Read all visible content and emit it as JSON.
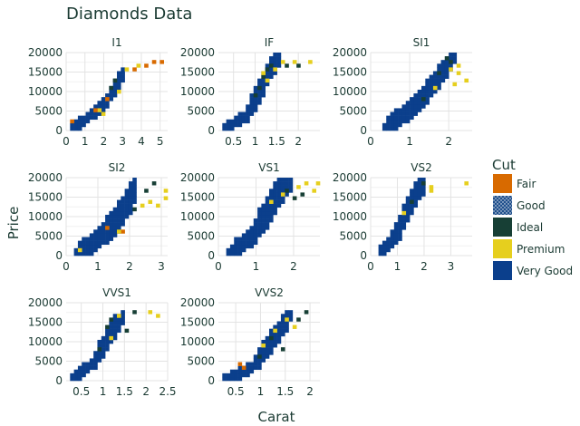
{
  "chart_data": {
    "type": "heatmap",
    "title": "Diamonds Data",
    "xlabel": "Carat",
    "ylabel": "Price",
    "ylim": [
      0,
      20000
    ],
    "y_ticks": [
      0,
      5000,
      10000,
      15000,
      20000
    ],
    "grid": true,
    "legend": {
      "title": "Cut",
      "placement": "right",
      "entries": [
        {
          "name": "Fair",
          "color": "#d86a00",
          "pattern": false
        },
        {
          "name": "Good",
          "color": "#1f4f8c",
          "pattern": true
        },
        {
          "name": "Ideal",
          "color": "#173f35",
          "pattern": false
        },
        {
          "name": "Premium",
          "color": "#e6cf1e",
          "pattern": false
        },
        {
          "name": "Very Good",
          "color": "#0b3f8c",
          "pattern": false
        }
      ]
    },
    "facets": [
      {
        "name": "I1",
        "xlim": [
          0,
          5.4
        ],
        "x_ticks": [
          0,
          1,
          2,
          3,
          4,
          5
        ],
        "x_tick_labels": [
          "0",
          "1",
          "2",
          "3",
          "4",
          "5"
        ],
        "show_y_ticks": true,
        "show_x_ticks": true,
        "ridge": [
          [
            0.3,
            400,
            3
          ],
          [
            2.0,
            6500,
            3
          ],
          [
            2.6,
            11000,
            3
          ],
          [
            3.0,
            14500,
            2
          ]
        ],
        "extra": [
          [
            "Fair",
            0.4,
            2000
          ],
          [
            "Fair",
            3.6,
            16000
          ],
          [
            "Fair",
            4.2,
            16200
          ],
          [
            "Fair",
            4.6,
            17500
          ],
          [
            "Fair",
            5.1,
            18000
          ],
          [
            "Premium",
            3.9,
            16500
          ],
          [
            "Premium",
            3.3,
            15500
          ],
          [
            "Premium",
            2.0,
            4500
          ],
          [
            "Premium",
            1.8,
            5200
          ],
          [
            "Ideal",
            2.6,
            13000
          ],
          [
            "Ideal",
            2.4,
            11000
          ],
          [
            "Fair",
            2.1,
            8200
          ],
          [
            "Premium",
            2.8,
            9800
          ],
          [
            "Fair",
            1.6,
            5000
          ]
        ]
      },
      {
        "name": "IF",
        "xlim": [
          0.15,
          2.5
        ],
        "x_ticks": [
          0.5,
          1,
          1.5,
          2
        ],
        "x_tick_labels": [
          "0.5",
          "1",
          "1.5",
          "2"
        ],
        "show_y_ticks": true,
        "show_x_ticks": true,
        "ridge": [
          [
            0.25,
            400,
            2
          ],
          [
            0.8,
            3500,
            3
          ],
          [
            1.05,
            9000,
            4
          ],
          [
            1.3,
            15000,
            5
          ],
          [
            1.55,
            18500,
            3
          ]
        ],
        "extra": [
          [
            "Ideal",
            1.1,
            11000
          ],
          [
            "Ideal",
            1.2,
            13500
          ],
          [
            "Ideal",
            1.3,
            15500
          ],
          [
            "Ideal",
            1.4,
            17000
          ],
          [
            "Premium",
            1.6,
            17500
          ],
          [
            "Premium",
            1.5,
            16000
          ],
          [
            "Premium",
            1.9,
            18000
          ],
          [
            "Premium",
            2.3,
            18000
          ],
          [
            "Ideal",
            2.0,
            17000
          ],
          [
            "Ideal",
            1.75,
            16500
          ],
          [
            "Premium",
            1.25,
            12500
          ],
          [
            "Premium",
            1.15,
            15000
          ],
          [
            "Ideal",
            1.0,
            9500
          ]
        ]
      },
      {
        "name": "SI1",
        "xlim": [
          0,
          2.6
        ],
        "x_ticks": [
          0,
          1,
          2
        ],
        "x_tick_labels": [
          "0",
          "1",
          "2"
        ],
        "show_y_ticks": true,
        "show_x_ticks": true,
        "ridge": [
          [
            0.3,
            500,
            3
          ],
          [
            1.0,
            5000,
            5
          ],
          [
            1.5,
            10500,
            5
          ],
          [
            1.9,
            16000,
            5
          ],
          [
            2.1,
            18500,
            3
          ]
        ],
        "extra": [
          [
            "Ideal",
            1.7,
            14500
          ],
          [
            "Ideal",
            1.9,
            18500
          ],
          [
            "Ideal",
            2.0,
            17500
          ],
          [
            "Premium",
            2.2,
            16500
          ],
          [
            "Premium",
            2.3,
            15000
          ],
          [
            "Premium",
            2.4,
            13000
          ],
          [
            "Premium",
            2.1,
            12000
          ],
          [
            "Premium",
            1.6,
            11000
          ],
          [
            "Ideal",
            1.3,
            8500
          ],
          [
            "Premium",
            2.0,
            15500
          ]
        ]
      },
      {
        "name": "SI2",
        "xlim": [
          0,
          3.2
        ],
        "x_ticks": [
          0,
          1,
          2,
          3
        ],
        "x_tick_labels": [
          "0",
          "1",
          "2",
          "3"
        ],
        "show_y_ticks": true,
        "show_x_ticks": true,
        "ridge": [
          [
            0.3,
            500,
            3
          ],
          [
            1.0,
            4000,
            5
          ],
          [
            1.5,
            8000,
            6
          ],
          [
            1.9,
            13000,
            6
          ],
          [
            2.2,
            18000,
            6
          ]
        ],
        "extra": [
          [
            "Fair",
            1.3,
            7500
          ],
          [
            "Fair",
            1.8,
            6500
          ],
          [
            "Ideal",
            2.5,
            16500
          ],
          [
            "Ideal",
            2.8,
            18500
          ],
          [
            "Premium",
            3.1,
            14500
          ],
          [
            "Premium",
            3.1,
            17000
          ],
          [
            "Premium",
            2.7,
            14000
          ],
          [
            "Premium",
            2.4,
            12500
          ],
          [
            "Premium",
            1.6,
            6000
          ],
          [
            "Premium",
            0.4,
            1500
          ],
          [
            "Ideal",
            2.1,
            12000
          ],
          [
            "Premium",
            2.9,
            13000
          ]
        ]
      },
      {
        "name": "VS1",
        "xlim": [
          0,
          2.7
        ],
        "x_ticks": [
          0,
          1,
          2
        ],
        "x_tick_labels": [
          "0",
          "1",
          "2"
        ],
        "show_y_ticks": true,
        "show_x_ticks": true,
        "ridge": [
          [
            0.3,
            500,
            3
          ],
          [
            0.9,
            5000,
            5
          ],
          [
            1.3,
            11000,
            6
          ],
          [
            1.6,
            16000,
            6
          ],
          [
            1.9,
            18500,
            4
          ]
        ],
        "extra": [
          [
            "Premium",
            2.1,
            17500
          ],
          [
            "Premium",
            2.3,
            18500
          ],
          [
            "Premium",
            2.5,
            16500
          ],
          [
            "Premium",
            2.6,
            19000
          ],
          [
            "Ideal",
            2.0,
            15000
          ],
          [
            "Ideal",
            1.8,
            17000
          ],
          [
            "Premium",
            1.7,
            15500
          ],
          [
            "Ideal",
            2.2,
            16000
          ],
          [
            "Premium",
            1.4,
            13500
          ]
        ]
      },
      {
        "name": "VS2",
        "xlim": [
          0,
          3.8
        ],
        "x_ticks": [
          0,
          1,
          2,
          3
        ],
        "x_tick_labels": [
          "0",
          "1",
          "2",
          "3"
        ],
        "show_y_ticks": true,
        "show_x_ticks": true,
        "ridge": [
          [
            0.4,
            700,
            2
          ],
          [
            1.0,
            6000,
            4
          ],
          [
            1.4,
            12000,
            5
          ],
          [
            1.8,
            17000,
            4
          ],
          [
            2.0,
            19000,
            3
          ]
        ],
        "extra": [
          [
            "Premium",
            2.2,
            18000
          ],
          [
            "Premium",
            2.3,
            17000
          ],
          [
            "Ideal",
            1.9,
            18500
          ],
          [
            "Premium",
            3.6,
            18500
          ],
          [
            "Ideal",
            1.5,
            13500
          ],
          [
            "Premium",
            1.3,
            10500
          ]
        ]
      },
      {
        "name": "VVS1",
        "xlim": [
          0.15,
          2.5
        ],
        "x_ticks": [
          0.5,
          1,
          1.5,
          2,
          2.5
        ],
        "x_tick_labels": [
          "0.5",
          "1",
          "1.5",
          "2",
          "2.5"
        ],
        "show_y_ticks": true,
        "show_x_ticks": true,
        "ridge": [
          [
            0.25,
            400,
            2
          ],
          [
            0.8,
            4500,
            3
          ],
          [
            1.05,
            9500,
            4
          ],
          [
            1.3,
            14500,
            4
          ],
          [
            1.5,
            17000,
            2
          ]
        ],
        "extra": [
          [
            "Ideal",
            1.1,
            13500
          ],
          [
            "Ideal",
            1.2,
            15500
          ],
          [
            "Premium",
            1.35,
            16500
          ],
          [
            "Ideal",
            1.75,
            17500
          ],
          [
            "Ideal",
            1.55,
            13000
          ],
          [
            "Premium",
            2.05,
            18000
          ],
          [
            "Premium",
            2.25,
            16500
          ],
          [
            "Premium",
            1.15,
            11000
          ],
          [
            "Ideal",
            0.95,
            8000
          ]
        ]
      },
      {
        "name": "VVS2",
        "xlim": [
          0.15,
          2.2
        ],
        "x_ticks": [
          0.5,
          1,
          1.5,
          2
        ],
        "x_tick_labels": [
          "0.5",
          "1",
          "1.5",
          "2"
        ],
        "show_y_ticks": true,
        "show_x_ticks": true,
        "ridge": [
          [
            0.3,
            400,
            2
          ],
          [
            0.8,
            3000,
            3
          ],
          [
            1.1,
            8000,
            4
          ],
          [
            1.4,
            13000,
            4
          ],
          [
            1.6,
            17000,
            3
          ]
        ],
        "extra": [
          [
            "Fair",
            0.6,
            4000
          ],
          [
            "Fair",
            0.7,
            3500
          ],
          [
            "Ideal",
            1.0,
            6000
          ],
          [
            "Ideal",
            1.2,
            11000
          ],
          [
            "Premium",
            1.3,
            12500
          ],
          [
            "Premium",
            1.7,
            14000
          ],
          [
            "Premium",
            1.5,
            16000
          ],
          [
            "Ideal",
            1.9,
            17500
          ],
          [
            "Ideal",
            1.8,
            15500
          ],
          [
            "Premium",
            1.05,
            9500
          ],
          [
            "Ideal",
            1.45,
            8500
          ]
        ]
      }
    ]
  }
}
